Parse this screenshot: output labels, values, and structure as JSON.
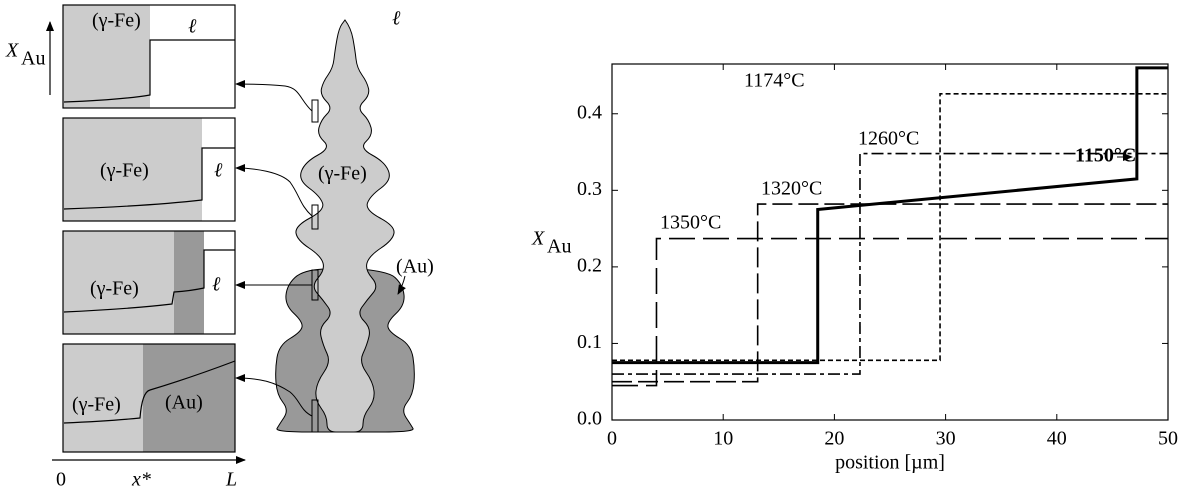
{
  "chart_data": {
    "type": "line",
    "xlabel": "position [µm]",
    "ylabel": "X",
    "ylabel_sub": "Au",
    "xlim": [
      0,
      50
    ],
    "ylim": [
      0,
      0.465
    ],
    "xticks": [
      0,
      10,
      20,
      30,
      40,
      50
    ],
    "yticks": [
      {
        "value": 0,
        "label": "0.0"
      },
      0.1,
      0.2,
      0.3,
      0.4
    ],
    "series": [
      {
        "name": "1350°C",
        "color": "#000",
        "x": [
          0,
          4,
          4,
          50
        ],
        "values": [
          0.045,
          0.045,
          0.237,
          0.237
        ]
      },
      {
        "name": "1320°C",
        "color": "#000",
        "x": [
          0,
          13.1,
          13.1,
          50
        ],
        "values": [
          0.05,
          0.05,
          0.282,
          0.282
        ]
      },
      {
        "name": "1260°C",
        "color": "#000",
        "x": [
          0,
          22.3,
          22.3,
          50
        ],
        "values": [
          0.06,
          0.06,
          0.348,
          0.348
        ]
      },
      {
        "name": "1174°C",
        "color": "#000",
        "x": [
          0,
          29.5,
          29.5,
          50
        ],
        "values": [
          0.078,
          0.078,
          0.426,
          0.426
        ]
      },
      {
        "name": "1150°C",
        "color": "#000",
        "x": [
          0,
          18.5,
          18.5,
          47.2,
          47.2,
          50
        ],
        "values": [
          0.075,
          0.075,
          0.275,
          0.315,
          0.46,
          0.46
        ]
      }
    ]
  },
  "diagram": {
    "panels": [
      {
        "labels": [
          "(γ-Fe)",
          "ℓ"
        ]
      },
      {
        "labels": [
          "(γ-Fe)",
          "ℓ"
        ]
      },
      {
        "labels": [
          "(γ-Fe)",
          "ℓ"
        ]
      },
      {
        "labels": [
          "(γ-Fe)",
          "(Au)"
        ]
      }
    ],
    "y_axis_label": "X",
    "y_axis_label_sub": "Au",
    "x_axis_labels": [
      "0",
      "x*",
      "L"
    ],
    "dendrite_labels": [
      "ℓ",
      "(γ-Fe)",
      "(Au)"
    ]
  }
}
